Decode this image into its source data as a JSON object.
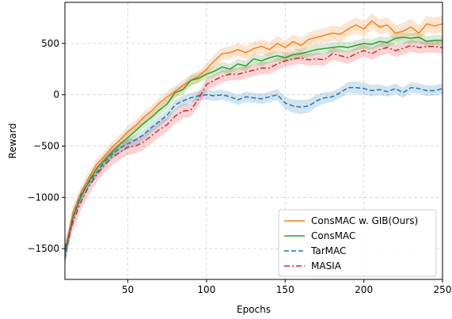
{
  "chart_data": {
    "type": "line",
    "title": "",
    "xlabel": "Epochs",
    "ylabel": "Reward",
    "xlim": [
      10,
      250
    ],
    "ylim": [
      -1800,
      900
    ],
    "xticks": [
      50,
      100,
      150,
      200,
      250
    ],
    "yticks": [
      -1500,
      -1000,
      -500,
      0,
      500
    ],
    "grid": true,
    "legend_position": "lower-right",
    "series": [
      {
        "name": "ConsMAC w. GIB(Ours)",
        "color": "#ff7f0e",
        "line_style": "solid",
        "x": [
          10,
          15,
          20,
          25,
          30,
          35,
          40,
          45,
          50,
          55,
          60,
          65,
          70,
          75,
          80,
          85,
          90,
          95,
          100,
          105,
          110,
          115,
          120,
          125,
          130,
          135,
          140,
          145,
          150,
          155,
          160,
          165,
          170,
          175,
          180,
          185,
          190,
          195,
          200,
          205,
          210,
          215,
          220,
          225,
          230,
          235,
          240,
          245,
          250
        ],
        "y": [
          -1550,
          -1150,
          -960,
          -810,
          -680,
          -600,
          -510,
          -440,
          -360,
          -300,
          -220,
          -160,
          -80,
          -20,
          30,
          90,
          140,
          180,
          250,
          330,
          400,
          410,
          440,
          410,
          450,
          470,
          440,
          500,
          460,
          520,
          480,
          540,
          560,
          580,
          600,
          590,
          640,
          680,
          640,
          720,
          660,
          680,
          600,
          620,
          660,
          600,
          690,
          670,
          690
        ],
        "band": [
          80,
          70,
          60,
          55,
          55,
          55,
          55,
          55,
          55,
          55,
          55,
          55,
          55,
          55,
          55,
          55,
          55,
          55,
          60,
          60,
          60,
          60,
          65,
          65,
          65,
          70,
          70,
          70,
          70,
          70,
          70,
          70,
          70,
          70,
          75,
          75,
          75,
          75,
          75,
          75,
          75,
          75,
          80,
          80,
          80,
          80,
          80,
          80,
          80
        ]
      },
      {
        "name": "ConsMAC",
        "color": "#2ca02c",
        "line_style": "solid",
        "x": [
          10,
          15,
          20,
          25,
          30,
          35,
          40,
          45,
          50,
          55,
          60,
          65,
          70,
          75,
          80,
          85,
          90,
          95,
          100,
          105,
          110,
          115,
          120,
          125,
          130,
          135,
          140,
          145,
          150,
          155,
          160,
          165,
          170,
          175,
          180,
          185,
          190,
          195,
          200,
          205,
          210,
          215,
          220,
          225,
          230,
          235,
          240,
          245,
          250
        ],
        "y": [
          -1550,
          -1200,
          -1000,
          -850,
          -720,
          -640,
          -560,
          -480,
          -420,
          -350,
          -280,
          -220,
          -150,
          -90,
          20,
          50,
          140,
          160,
          200,
          230,
          270,
          250,
          300,
          280,
          350,
          330,
          360,
          380,
          360,
          390,
          400,
          420,
          440,
          450,
          460,
          470,
          460,
          480,
          500,
          490,
          520,
          510,
          550,
          560,
          550,
          560,
          520,
          530,
          530
        ],
        "band": [
          70,
          60,
          55,
          50,
          50,
          50,
          50,
          50,
          50,
          50,
          50,
          50,
          50,
          50,
          50,
          50,
          50,
          50,
          50,
          50,
          50,
          50,
          50,
          50,
          50,
          50,
          50,
          50,
          50,
          50,
          50,
          50,
          50,
          50,
          50,
          50,
          50,
          50,
          50,
          50,
          50,
          50,
          50,
          50,
          50,
          50,
          50,
          50,
          50
        ]
      },
      {
        "name": "TarMAC",
        "color": "#1f77b4",
        "line_style": "dashed",
        "x": [
          10,
          15,
          20,
          25,
          30,
          35,
          40,
          45,
          50,
          55,
          60,
          65,
          70,
          75,
          80,
          85,
          90,
          95,
          100,
          105,
          110,
          115,
          120,
          125,
          130,
          135,
          140,
          145,
          150,
          155,
          160,
          165,
          170,
          175,
          180,
          185,
          190,
          195,
          200,
          205,
          210,
          215,
          220,
          225,
          230,
          235,
          240,
          245,
          250
        ],
        "y": [
          -1600,
          -1200,
          -980,
          -860,
          -760,
          -660,
          -580,
          -520,
          -480,
          -440,
          -390,
          -320,
          -260,
          -200,
          -100,
          -60,
          -30,
          -10,
          0,
          -10,
          0,
          -20,
          -50,
          -20,
          -30,
          -40,
          -20,
          0,
          -80,
          -110,
          -120,
          -110,
          -60,
          -30,
          -20,
          20,
          70,
          70,
          60,
          40,
          50,
          30,
          60,
          20,
          70,
          60,
          40,
          40,
          60
        ],
        "band": [
          80,
          60,
          55,
          50,
          50,
          50,
          50,
          50,
          50,
          50,
          50,
          50,
          50,
          50,
          50,
          50,
          50,
          50,
          50,
          50,
          50,
          50,
          50,
          50,
          50,
          50,
          50,
          55,
          60,
          65,
          70,
          65,
          60,
          55,
          50,
          50,
          55,
          60,
          60,
          55,
          50,
          50,
          50,
          50,
          50,
          50,
          50,
          50,
          50
        ]
      },
      {
        "name": "MASIA",
        "color": "#d62728",
        "line_style": "dashdot",
        "x": [
          10,
          15,
          20,
          25,
          30,
          35,
          40,
          45,
          50,
          55,
          60,
          65,
          70,
          75,
          80,
          85,
          90,
          95,
          100,
          105,
          110,
          115,
          120,
          125,
          130,
          135,
          140,
          145,
          150,
          155,
          160,
          165,
          170,
          175,
          180,
          185,
          190,
          195,
          200,
          205,
          210,
          215,
          220,
          225,
          230,
          235,
          240,
          245,
          250
        ],
        "y": [
          -1500,
          -1250,
          -1050,
          -900,
          -780,
          -690,
          -610,
          -560,
          -510,
          -500,
          -460,
          -400,
          -340,
          -290,
          -210,
          -160,
          -150,
          -40,
          100,
          140,
          180,
          200,
          200,
          220,
          240,
          260,
          260,
          300,
          330,
          350,
          360,
          340,
          350,
          340,
          400,
          380,
          360,
          400,
          430,
          400,
          440,
          460,
          430,
          450,
          480,
          460,
          470,
          470,
          460
        ],
        "band": [
          80,
          80,
          80,
          75,
          75,
          75,
          75,
          75,
          75,
          75,
          75,
          75,
          75,
          70,
          70,
          70,
          65,
          65,
          60,
          60,
          60,
          60,
          60,
          60,
          60,
          60,
          60,
          60,
          60,
          60,
          60,
          60,
          60,
          60,
          60,
          60,
          60,
          60,
          60,
          60,
          60,
          60,
          60,
          60,
          60,
          60,
          60,
          60,
          60
        ]
      }
    ]
  }
}
